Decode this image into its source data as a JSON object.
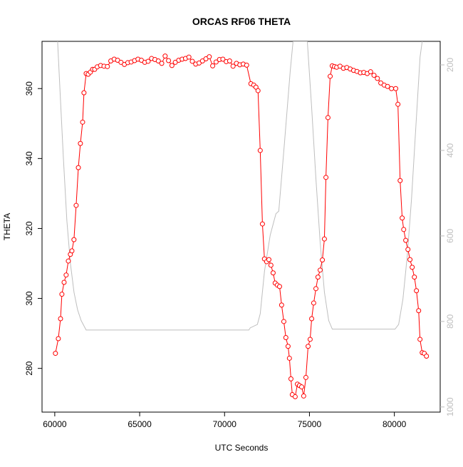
{
  "chart_data": {
    "type": "line",
    "title": "ORCAS RF06 THETA",
    "xlabel": "UTC Seconds",
    "ylabel": "THETA",
    "xlim": [
      59250,
      82700
    ],
    "ylim": [
      267.5,
      373.5
    ],
    "y2lim": [
      1012,
      145
    ],
    "xticks": [
      60000,
      65000,
      70000,
      75000,
      80000
    ],
    "yticks": [
      280,
      300,
      320,
      340,
      360
    ],
    "y2ticks": [
      200,
      400,
      600,
      800,
      1000
    ],
    "series": [
      {
        "color": "#ff0000",
        "marker": "circle",
        "x": [
          60040,
          60210,
          60340,
          60420,
          60550,
          60670,
          60800,
          60920,
          61010,
          61130,
          61260,
          61390,
          61510,
          61640,
          61720,
          61850,
          61970,
          62100,
          62230,
          62350,
          62500,
          62700,
          62900,
          63100,
          63300,
          63500,
          63700,
          63900,
          64100,
          64300,
          64500,
          64700,
          64900,
          65100,
          65300,
          65500,
          65700,
          65900,
          66100,
          66300,
          66500,
          66700,
          66900,
          67100,
          67300,
          67500,
          67700,
          67900,
          68100,
          68300,
          68500,
          68700,
          68900,
          69100,
          69300,
          69500,
          69700,
          69900,
          70100,
          70300,
          70500,
          70700,
          70900,
          71100,
          71300,
          71550,
          71720,
          71850,
          71970,
          72100,
          72230,
          72350,
          72480,
          72610,
          72730,
          72860,
          72980,
          73110,
          73240,
          73360,
          73490,
          73610,
          73740,
          73820,
          73910,
          73990,
          74160,
          74290,
          74410,
          74540,
          74660,
          74790,
          74920,
          75040,
          75130,
          75250,
          75380,
          75500,
          75630,
          75760,
          75880,
          75970,
          76090,
          76220,
          76340,
          76470,
          76600,
          76800,
          77000,
          77200,
          77400,
          77600,
          77800,
          78000,
          78200,
          78400,
          78600,
          78800,
          79000,
          79200,
          79400,
          79600,
          79830,
          80080,
          80210,
          80340,
          80460,
          80550,
          80670,
          80800,
          80920,
          81050,
          81180,
          81300,
          81430,
          81510,
          81640,
          81760,
          81890
        ],
        "values": [
          284.3,
          288.5,
          294.2,
          301.2,
          304.6,
          306.7,
          310.7,
          312.6,
          313.6,
          316.8,
          326.6,
          337.4,
          344.3,
          350.4,
          358.8,
          364.3,
          364.1,
          364.7,
          365.5,
          365.5,
          366.2,
          366.6,
          366.4,
          366.3,
          367.9,
          368.4,
          368.1,
          367.5,
          366.9,
          367.4,
          367.6,
          368.0,
          368.4,
          368.1,
          367.5,
          367.8,
          368.6,
          368.3,
          367.9,
          367.2,
          369.3,
          368.0,
          366.6,
          367.5,
          368.1,
          368.4,
          368.6,
          369.0,
          367.8,
          367.0,
          367.3,
          367.9,
          368.5,
          369.1,
          366.5,
          367.6,
          368.3,
          368.4,
          367.7,
          367.9,
          366.4,
          367.2,
          366.8,
          367.0,
          366.7,
          361.4,
          361.0,
          360.4,
          359.4,
          342.3,
          321.3,
          311.3,
          310.5,
          311.1,
          309.5,
          307.3,
          304.4,
          303.8,
          303.4,
          298.1,
          293.4,
          288.8,
          286.3,
          282.9,
          277.0,
          272.5,
          271.9,
          275.5,
          275.1,
          274.7,
          272.1,
          277.4,
          286.3,
          288.3,
          294.2,
          298.7,
          302.8,
          306.1,
          308.1,
          311.0,
          317.0,
          334.6,
          351.7,
          363.5,
          366.5,
          366.3,
          366.1,
          366.4,
          365.8,
          366.0,
          365.6,
          365.2,
          364.9,
          364.5,
          364.6,
          364.3,
          364.8,
          363.8,
          362.9,
          361.6,
          361.0,
          360.6,
          360.0,
          360.0,
          355.5,
          333.7,
          323.0,
          319.7,
          316.6,
          314.0,
          311.1,
          308.9,
          306.1,
          302.2,
          296.5,
          288.3,
          284.5,
          284.3,
          283.5
        ]
      },
      {
        "color": "#bebebe",
        "axis": "y2",
        "x": [
          60168,
          60294,
          60504,
          60714,
          60924,
          61134,
          61345,
          61555,
          61849,
          71430,
          71512,
          71933,
          72101,
          72353,
          72689,
          73025,
          73193,
          73319,
          73529,
          73866,
          74034,
          74874,
          75126,
          75378,
          75630,
          75882,
          76134,
          76345,
          80040,
          80252,
          80504,
          80756,
          81008,
          81261,
          81513,
          81639
        ],
        "values": [
          145,
          248,
          415,
          565,
          665,
          732,
          773,
          798,
          820,
          820,
          815,
          807,
          782,
          682,
          598,
          548,
          542,
          482,
          382,
          215,
          145,
          145,
          298,
          465,
          615,
          732,
          798,
          818,
          818,
          807,
          748,
          648,
          515,
          348,
          182,
          145
        ]
      }
    ]
  }
}
